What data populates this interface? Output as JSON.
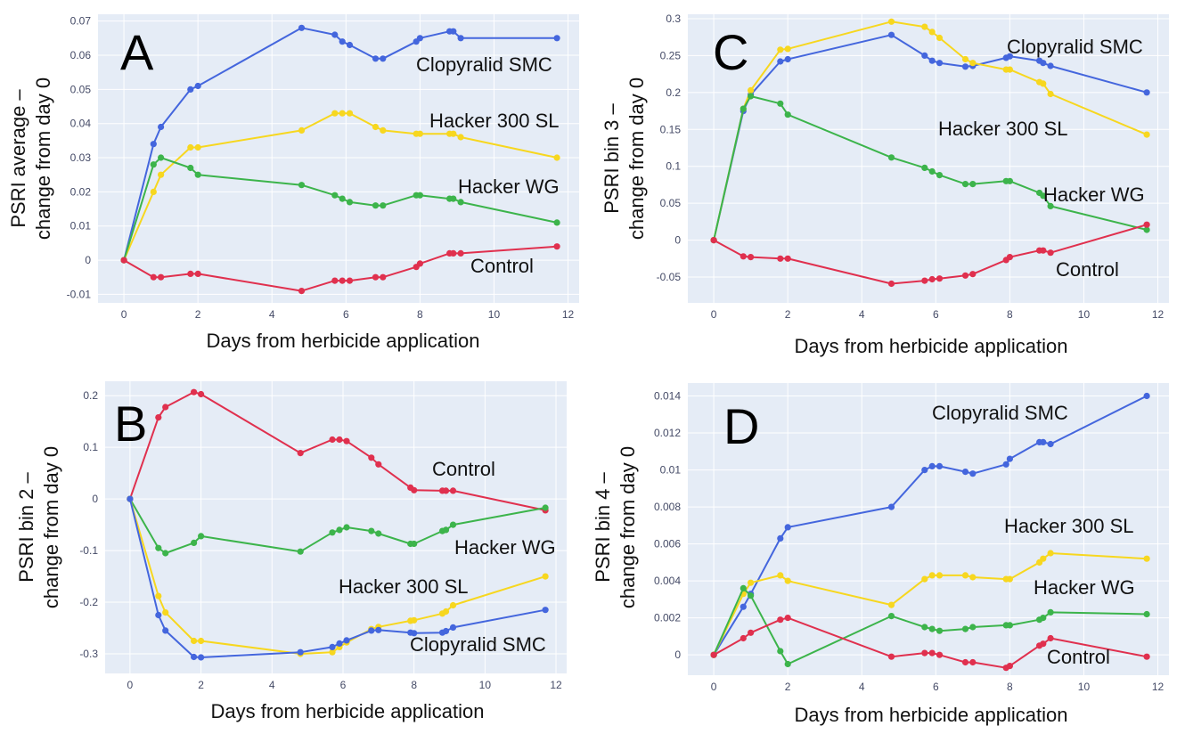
{
  "colors": {
    "Clopyralid SMC": "#4466dd",
    "Hacker 300 SL": "#f7d71f",
    "Hacker WG": "#3cb44b",
    "Control": "#e0304e",
    "plot_bg": "#e5ecf6"
  },
  "chart_data": [
    {
      "type": "line",
      "panel": "A",
      "xlabel": "Days from herbicide application",
      "ylabel": [
        "PSRI average –",
        "change from day 0"
      ],
      "xlim": [
        -0.7,
        12.3
      ],
      "ylim": [
        -0.0125,
        0.072
      ],
      "xticks": [
        0,
        2,
        4,
        6,
        8,
        10,
        12
      ],
      "yticks": [
        -0.01,
        0,
        0.01,
        0.02,
        0.03,
        0.04,
        0.05,
        0.06,
        0.07
      ],
      "ytick_labels": [
        "-0.01",
        "0",
        "0.01",
        "0.02",
        "0.03",
        "0.04",
        "0.05",
        "0.06",
        "0.07"
      ],
      "x": [
        0,
        0.8,
        1.0,
        1.8,
        2.0,
        4.8,
        5.7,
        5.9,
        6.1,
        6.8,
        7.0,
        7.9,
        8.0,
        8.8,
        8.9,
        9.1,
        11.7
      ],
      "series": [
        {
          "name": "Clopyralid SMC",
          "values": [
            0,
            0.034,
            0.039,
            0.05,
            0.051,
            0.068,
            0.066,
            0.064,
            0.063,
            0.059,
            0.059,
            0.064,
            0.065,
            0.067,
            0.067,
            0.065,
            0.065
          ]
        },
        {
          "name": "Hacker 300 SL",
          "values": [
            0,
            0.02,
            0.025,
            0.033,
            0.033,
            0.038,
            0.043,
            0.043,
            0.043,
            0.039,
            0.038,
            0.037,
            0.037,
            0.037,
            0.037,
            0.036,
            0.03
          ]
        },
        {
          "name": "Hacker WG",
          "values": [
            0,
            0.028,
            0.03,
            0.027,
            0.025,
            0.022,
            0.019,
            0.018,
            0.017,
            0.016,
            0.016,
            0.019,
            0.019,
            0.018,
            0.018,
            0.017,
            0.011
          ]
        },
        {
          "name": "Control",
          "values": [
            0,
            -0.005,
            -0.005,
            -0.004,
            -0.004,
            -0.009,
            -0.006,
            -0.006,
            -0.006,
            -0.005,
            -0.005,
            -0.002,
            -0.001,
            0.002,
            0.002,
            0.002,
            0.004
          ]
        }
      ],
      "annotations": [
        "Clopyralid SMC",
        "Hacker 300 SL",
        "Hacker WG",
        "Control"
      ]
    },
    {
      "type": "line",
      "panel": "C",
      "xlabel": "Days from herbicide application",
      "ylabel": [
        "PSRI bin 3 –",
        "change from day 0"
      ],
      "xlim": [
        -0.7,
        12.3
      ],
      "ylim": [
        -0.085,
        0.306
      ],
      "xticks": [
        0,
        2,
        4,
        6,
        8,
        10,
        12
      ],
      "yticks": [
        -0.05,
        0,
        0.05,
        0.1,
        0.15,
        0.2,
        0.25,
        0.3
      ],
      "ytick_labels": [
        "-0.05",
        "0",
        "0.05",
        "0.1",
        "0.15",
        "0.2",
        "0.25",
        "0.3"
      ],
      "x": [
        0,
        0.8,
        1.0,
        1.8,
        2.0,
        4.8,
        5.7,
        5.9,
        6.1,
        6.8,
        7.0,
        7.9,
        8.0,
        8.8,
        8.9,
        9.1,
        11.7
      ],
      "series": [
        {
          "name": "Clopyralid SMC",
          "values": [
            0,
            0.175,
            0.197,
            0.242,
            0.245,
            0.278,
            0.25,
            0.243,
            0.24,
            0.235,
            0.236,
            0.247,
            0.249,
            0.243,
            0.24,
            0.236,
            0.2
          ]
        },
        {
          "name": "Hacker 300 SL",
          "values": [
            0,
            0.178,
            0.203,
            0.258,
            0.259,
            0.296,
            0.289,
            0.282,
            0.274,
            0.245,
            0.24,
            0.231,
            0.231,
            0.214,
            0.212,
            0.198,
            0.143
          ]
        },
        {
          "name": "Hacker WG",
          "values": [
            0,
            0.178,
            0.195,
            0.185,
            0.17,
            0.112,
            0.098,
            0.093,
            0.088,
            0.076,
            0.076,
            0.08,
            0.08,
            0.064,
            0.06,
            0.046,
            0.014
          ]
        },
        {
          "name": "Control",
          "values": [
            0,
            -0.022,
            -0.023,
            -0.025,
            -0.025,
            -0.059,
            -0.055,
            -0.053,
            -0.052,
            -0.048,
            -0.046,
            -0.027,
            -0.023,
            -0.014,
            -0.014,
            -0.017,
            0.021
          ]
        }
      ],
      "annotations": [
        "Clopyralid SMC",
        "Hacker 300 SL",
        "Hacker WG",
        "Control"
      ]
    },
    {
      "type": "line",
      "panel": "B",
      "xlabel": "Days from herbicide application",
      "ylabel": [
        "PSRI bin 2 –",
        "change from day 0"
      ],
      "xlim": [
        -0.7,
        12.3
      ],
      "ylim": [
        -0.338,
        0.228
      ],
      "xticks": [
        0,
        2,
        4,
        6,
        8,
        10,
        12
      ],
      "yticks": [
        -0.3,
        -0.2,
        -0.1,
        0,
        0.1,
        0.2
      ],
      "ytick_labels": [
        "-0.3",
        "-0.2",
        "-0.1",
        "0",
        "0.1",
        "0.2"
      ],
      "x": [
        0,
        0.8,
        1.0,
        1.8,
        2.0,
        4.8,
        5.7,
        5.9,
        6.1,
        6.8,
        7.0,
        7.9,
        8.0,
        8.8,
        8.9,
        9.1,
        11.7
      ],
      "series": [
        {
          "name": "Control",
          "values": [
            0,
            0.158,
            0.178,
            0.207,
            0.203,
            0.089,
            0.115,
            0.115,
            0.112,
            0.08,
            0.067,
            0.022,
            0.017,
            0.016,
            0.016,
            0.016,
            -0.022
          ]
        },
        {
          "name": "Hacker WG",
          "values": [
            0,
            -0.095,
            -0.105,
            -0.085,
            -0.072,
            -0.102,
            -0.065,
            -0.06,
            -0.055,
            -0.062,
            -0.067,
            -0.087,
            -0.087,
            -0.062,
            -0.06,
            -0.05,
            -0.017
          ]
        },
        {
          "name": "Hacker 300 SL",
          "values": [
            0,
            -0.188,
            -0.22,
            -0.275,
            -0.275,
            -0.3,
            -0.297,
            -0.287,
            -0.278,
            -0.252,
            -0.248,
            -0.236,
            -0.235,
            -0.222,
            -0.218,
            -0.206,
            -0.15
          ]
        },
        {
          "name": "Clopyralid SMC",
          "values": [
            0,
            -0.225,
            -0.255,
            -0.306,
            -0.307,
            -0.297,
            -0.287,
            -0.28,
            -0.274,
            -0.255,
            -0.254,
            -0.259,
            -0.26,
            -0.259,
            -0.256,
            -0.249,
            -0.215
          ]
        }
      ],
      "annotations": [
        "Control",
        "Hacker WG",
        "Hacker 300 SL",
        "Clopyralid SMC"
      ]
    },
    {
      "type": "line",
      "panel": "D",
      "xlabel": "Days from herbicide application",
      "ylabel": [
        "PSRI bin 4 –",
        "change from day 0"
      ],
      "xlim": [
        -0.7,
        12.3
      ],
      "ylim": [
        -0.0011,
        0.0147
      ],
      "xticks": [
        0,
        2,
        4,
        6,
        8,
        10,
        12
      ],
      "yticks": [
        0,
        0.002,
        0.004,
        0.006,
        0.008,
        0.01,
        0.012,
        0.014
      ],
      "ytick_labels": [
        "0",
        "0.002",
        "0.004",
        "0.006",
        "0.008",
        "0.01",
        "0.012",
        "0.014"
      ],
      "x": [
        0,
        0.8,
        1.0,
        1.8,
        2.0,
        4.8,
        5.7,
        5.9,
        6.1,
        6.8,
        7.0,
        7.9,
        8.0,
        8.8,
        8.9,
        9.1,
        11.7
      ],
      "series": [
        {
          "name": "Clopyralid SMC",
          "values": [
            0,
            0.0026,
            0.0033,
            0.0063,
            0.0069,
            0.008,
            0.01,
            0.0102,
            0.0102,
            0.0099,
            0.0098,
            0.0103,
            0.0106,
            0.0115,
            0.0115,
            0.0114,
            0.014
          ]
        },
        {
          "name": "Hacker 300 SL",
          "values": [
            0,
            0.0033,
            0.0039,
            0.0043,
            0.004,
            0.0027,
            0.0041,
            0.0043,
            0.0043,
            0.0043,
            0.0042,
            0.0041,
            0.0041,
            0.005,
            0.0052,
            0.0055,
            0.0052
          ]
        },
        {
          "name": "Hacker WG",
          "values": [
            0,
            0.0036,
            0.0032,
            0.0002,
            -0.0005,
            0.0021,
            0.0015,
            0.0014,
            0.0013,
            0.0014,
            0.0015,
            0.0016,
            0.0016,
            0.0019,
            0.002,
            0.0023,
            0.0022
          ]
        },
        {
          "name": "Control",
          "values": [
            0,
            0.0009,
            0.0012,
            0.0019,
            0.002,
            -0.0001,
            0.0001,
            0.0001,
            0.0,
            -0.0004,
            -0.0004,
            -0.0007,
            -0.0006,
            0.0005,
            0.0006,
            0.0009,
            -0.0001
          ]
        }
      ],
      "annotations": [
        "Clopyralid SMC",
        "Hacker 300 SL",
        "Hacker WG",
        "Control"
      ]
    }
  ]
}
